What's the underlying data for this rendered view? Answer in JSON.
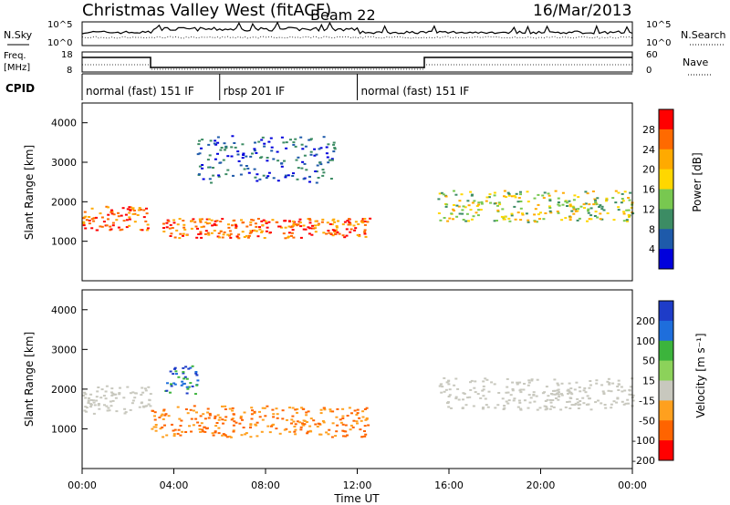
{
  "header": {
    "title": "Christmas Valley West (fitACF)",
    "beam": "Beam 22",
    "date": "16/Mar/2013"
  },
  "aux_panels": {
    "nsky": {
      "label": "N.Sky",
      "yticks": [
        "10^5",
        "10^0"
      ],
      "right_label": "N.Search",
      "right_yticks": [
        "10^5",
        "10^0"
      ]
    },
    "freq": {
      "label_line1": "Freq.",
      "label_line2": "[MHz]",
      "yticks": [
        "18",
        "8"
      ],
      "right_label": "Nave",
      "right_yticks": [
        "60",
        "0"
      ]
    },
    "cpid": {
      "label": "CPID",
      "segments": [
        {
          "text": "normal (fast) 151 IF",
          "start_hour": 0.0,
          "end_hour": 6.0
        },
        {
          "text": "rbsp 201 IF",
          "start_hour": 6.0,
          "end_hour": 12.0
        },
        {
          "text": "normal (fast) 151 IF",
          "start_hour": 12.0,
          "end_hour": 24.0
        }
      ]
    }
  },
  "chart_data": [
    {
      "type": "heatmap",
      "quantity": "Power",
      "ylabel": "Slant Range [km]",
      "ylim": [
        0,
        4500
      ],
      "yticks": [
        1000,
        2000,
        3000,
        4000
      ],
      "xlim": [
        0,
        24
      ],
      "colorbar": {
        "label": "Power [dB]",
        "ticks": [
          "28",
          "24",
          "20",
          "16",
          "12",
          "8",
          "4"
        ],
        "colors": [
          "#ff0000",
          "#ff6a00",
          "#ffaa00",
          "#ffd700",
          "#78c850",
          "#3c8c64",
          "#1e5aaa",
          "#0000dc"
        ]
      },
      "features": [
        {
          "t0": 0.0,
          "t1": 3.0,
          "r0": 1300,
          "r1": 1900,
          "level": "high"
        },
        {
          "t0": 3.5,
          "t1": 12.5,
          "r0": 1100,
          "r1": 1600,
          "level": "high"
        },
        {
          "t0": 5.0,
          "t1": 11.0,
          "r0": 2500,
          "r1": 3700,
          "level": "low"
        },
        {
          "t0": 15.5,
          "t1": 24.0,
          "r0": 1500,
          "r1": 2300,
          "level": "mid"
        }
      ]
    },
    {
      "type": "heatmap",
      "quantity": "Velocity",
      "ylabel": "Slant Range [km]",
      "ylim": [
        0,
        4500
      ],
      "yticks": [
        1000,
        2000,
        3000,
        4000
      ],
      "xlim": [
        0,
        24
      ],
      "colorbar": {
        "label": "Velocity [m s⁻¹]",
        "ticks": [
          "200",
          "100",
          "50",
          "15",
          "-15",
          "-50",
          "-100",
          "-200"
        ],
        "colors": [
          "#1e3cc8",
          "#1e6edc",
          "#3cb43c",
          "#8cd25a",
          "#c8c8be",
          "#ffa01e",
          "#ff6400",
          "#ff0000"
        ]
      },
      "features": [
        {
          "t0": 0.0,
          "t1": 3.0,
          "r0": 1400,
          "r1": 2100,
          "level": "ground"
        },
        {
          "t0": 3.0,
          "t1": 12.5,
          "r0": 800,
          "r1": 1600,
          "level": "negative"
        },
        {
          "t0": 3.5,
          "t1": 5.0,
          "r0": 1900,
          "r1": 2600,
          "level": "positive"
        },
        {
          "t0": 15.5,
          "t1": 24.0,
          "r0": 1500,
          "r1": 2300,
          "level": "ground"
        }
      ]
    }
  ],
  "xaxis": {
    "label": "Time UT",
    "ticks": [
      "00:00",
      "04:00",
      "08:00",
      "12:00",
      "16:00",
      "20:00",
      "00:00"
    ]
  }
}
